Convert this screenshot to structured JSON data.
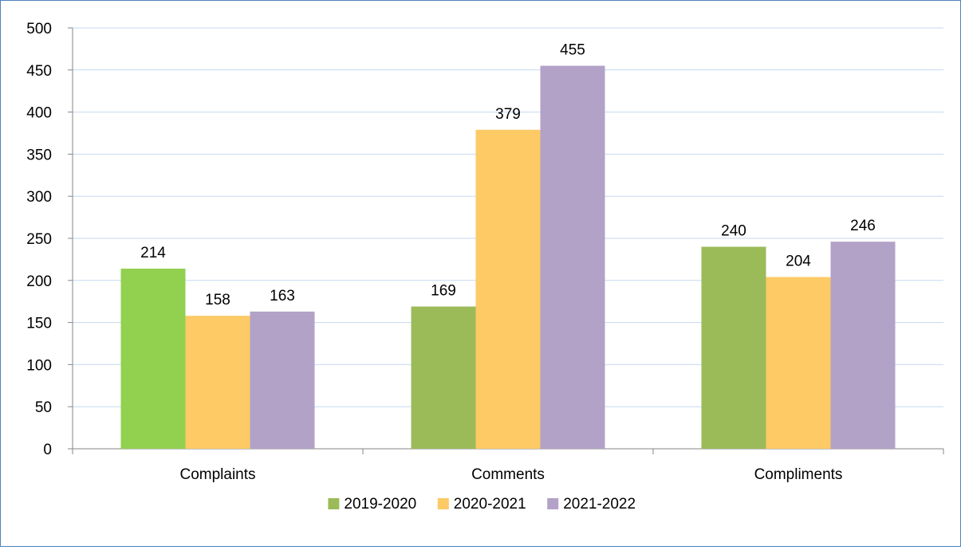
{
  "chart_data": {
    "type": "bar",
    "title": "",
    "xlabel": "",
    "ylabel": "",
    "categories": [
      "Complaints",
      "Comments",
      "Compliments"
    ],
    "series": [
      {
        "name": "2019-2020",
        "color": "#9bbb59",
        "values": [
          214,
          169,
          240
        ]
      },
      {
        "name": "2020-2021",
        "color": "#fdca65",
        "values": [
          158,
          379,
          204
        ]
      },
      {
        "name": "2021-2022",
        "color": "#b2a2c7",
        "values": [
          163,
          455,
          246
        ]
      }
    ],
    "highlight": {
      "series": 0,
      "category": 0,
      "color": "#92d050"
    },
    "ylim": [
      0,
      500
    ],
    "yticks": [
      0,
      50,
      100,
      150,
      200,
      250,
      300,
      350,
      400,
      450,
      500
    ],
    "grid": true,
    "gridColor": "#c6d9f1",
    "axisColor": "#868686",
    "legend": "bottom"
  }
}
